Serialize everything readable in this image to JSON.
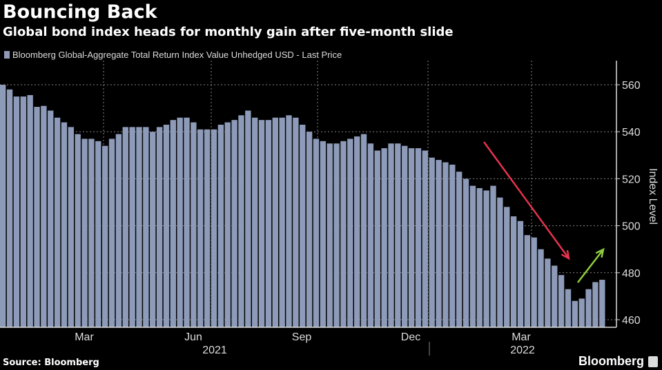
{
  "title": "Bouncing Back",
  "subtitle": "Global bond index heads for monthly gain after five-month slide",
  "source": "Source: Bloomberg",
  "logo": "Bloomberg",
  "colors": {
    "bar": "#8d9ab8",
    "down_arrow": "#e8344e",
    "up_arrow": "#8fce3c",
    "grid": "#888888"
  },
  "chart_data": {
    "type": "bar",
    "title": "Bouncing Back",
    "legend": [
      "Bloomberg Global-Aggregate Total Return Index Value Unhedged USD - Last Price"
    ],
    "legend_placement": "top-left",
    "ylabel": "Index Level",
    "ylim": [
      457,
      568
    ],
    "yticks": [
      460,
      480,
      500,
      520,
      540,
      560
    ],
    "xticks": [
      "Mar",
      "Jun",
      "Sep",
      "Dec",
      "Mar"
    ],
    "years": [
      "2021",
      "2022"
    ],
    "grid": true,
    "values": [
      560,
      558,
      555,
      555,
      555.6,
      550.6,
      551,
      549,
      546,
      544,
      542,
      539,
      537,
      537,
      536,
      534,
      537,
      539,
      542,
      542,
      542,
      542,
      540,
      542,
      543,
      545,
      546,
      546,
      544,
      541,
      541,
      541,
      543,
      544,
      545,
      547,
      549,
      546,
      545,
      545,
      546,
      546,
      547,
      546,
      543,
      540,
      537,
      536,
      535,
      535,
      536,
      537,
      538,
      539,
      535,
      532,
      533,
      535,
      535,
      534,
      533,
      533,
      532,
      529,
      528,
      527,
      526,
      523,
      520,
      517,
      516,
      515,
      517,
      512,
      508,
      504,
      502,
      496,
      495,
      490,
      486,
      483,
      479,
      473,
      468,
      469,
      473,
      476,
      477
    ]
  }
}
